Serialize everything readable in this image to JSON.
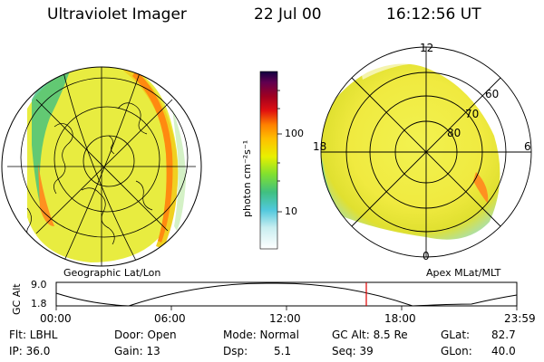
{
  "header": {
    "title": "Ultraviolet Imager",
    "date": "22 Jul 00",
    "time": "16:12:56 UT"
  },
  "colorbar": {
    "unit": "photon cm⁻²s⁻¹",
    "ticks": [
      "100",
      "10"
    ]
  },
  "polar": {
    "mlt_labels": {
      "top": "12",
      "left": "18",
      "right": "6",
      "bottom": "0"
    },
    "mlat_labels": [
      "60",
      "70",
      "80"
    ]
  },
  "captions": {
    "left": "Geographic Lat/Lon",
    "right": "Apex MLat/MLT"
  },
  "altitude_plot": {
    "ylabel": "GC Alt",
    "yticks": [
      "9.0",
      "1.8"
    ],
    "xticks": [
      "00:00",
      "06:00",
      "12:00",
      "18:00",
      "23:59"
    ],
    "current_time_marker": "16:12"
  },
  "info": {
    "flt": "Flt: LBHL",
    "ip": "IP: 36.0",
    "door": "Door: Open",
    "gain": "Gain: 13",
    "mode": "Mode: Normal",
    "dsp": "Dsp:",
    "dsp_val": "5.1",
    "gcalt": "GC Alt: 8.5 Re",
    "seq": "Seq: 39",
    "glat": "GLat:",
    "glat_val": "82.7",
    "glon": "GLon:",
    "glon_val": "40.0"
  },
  "colors": {
    "accent_marker": "#e00000"
  }
}
